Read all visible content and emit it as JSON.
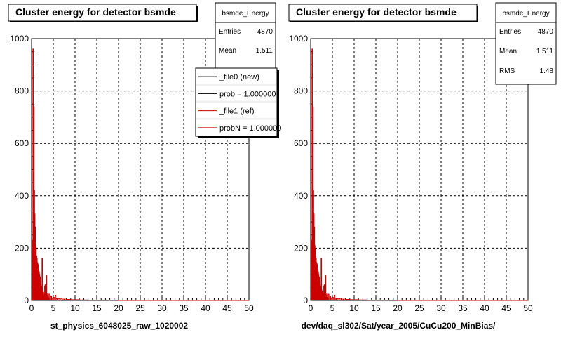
{
  "chart_data": [
    {
      "type": "histogram",
      "title": "Cluster energy for detector bsmde",
      "xlabel": "st_physics_6048025_raw_1020002",
      "ylabel": "",
      "xlim": [
        0,
        50
      ],
      "ylim": [
        0,
        1000
      ],
      "x_ticks": [
        "0",
        "5",
        "10",
        "15",
        "20",
        "25",
        "30",
        "35",
        "40",
        "45",
        "50"
      ],
      "y_ticks": [
        "0",
        "200",
        "400",
        "600",
        "800",
        "1000"
      ],
      "grid": true,
      "stats": {
        "name": "bsmde_Energy",
        "rows": [
          {
            "label": "Entries",
            "value": "4870"
          },
          {
            "label": "Mean",
            "value": "1.511"
          }
        ]
      },
      "legend": {
        "placement": "top-right",
        "entries": [
          {
            "label": "_file0 (new)",
            "color": "#000000"
          },
          {
            "label": "prob = 1.000000",
            "color": "#000000"
          },
          {
            "label": "_file1 (ref)",
            "color": "#cc0000"
          },
          {
            "label": "probN = 1.000000",
            "color": "#cc0000"
          }
        ]
      },
      "series": [
        {
          "color": "#cc0000",
          "x": [
            0.2,
            0.3,
            0.4,
            0.5,
            0.6,
            0.7,
            0.8,
            0.9,
            1.0,
            1.1,
            1.2,
            1.3,
            1.4,
            1.5,
            1.6,
            1.7,
            1.8,
            1.9,
            2.0,
            2.1,
            2.2,
            2.3,
            2.4,
            2.5,
            2.6,
            2.7,
            2.8,
            2.9,
            3.0,
            3.1,
            3.2,
            3.3,
            3.4,
            3.5,
            3.6,
            3.7,
            3.8,
            3.9,
            4.0,
            4.2,
            4.4,
            4.6,
            4.8,
            5.0,
            5.2,
            5.4,
            5.6,
            5.8,
            6.0,
            6.3,
            6.6,
            7.0,
            7.5,
            8.0,
            8.5,
            9.0,
            9.5,
            10.0,
            11,
            12,
            13,
            14,
            15,
            16,
            17,
            18,
            19,
            20
          ],
          "y": [
            230,
            960,
            540,
            740,
            420,
            330,
            280,
            210,
            200,
            170,
            160,
            145,
            140,
            135,
            120,
            110,
            100,
            90,
            85,
            60,
            55,
            48,
            160,
            40,
            35,
            30,
            22,
            18,
            55,
            60,
            14,
            12,
            95,
            20,
            10,
            25,
            12,
            10,
            24,
            18,
            15,
            10,
            8,
            12,
            9,
            20,
            8,
            6,
            7,
            8,
            6,
            5,
            5,
            4,
            4,
            3,
            3,
            3,
            2,
            2,
            1,
            1,
            1,
            1,
            1,
            1,
            1,
            0
          ]
        }
      ]
    },
    {
      "type": "histogram",
      "title": "Cluster energy for detector bsmde",
      "xlabel": "dev/daq_sl302/Sat/year_2005/CuCu200_MinBias/",
      "ylabel": "",
      "xlim": [
        0,
        50
      ],
      "ylim": [
        0,
        1000
      ],
      "x_ticks": [
        "0",
        "5",
        "10",
        "15",
        "20",
        "25",
        "30",
        "35",
        "40",
        "45",
        "50"
      ],
      "y_ticks": [
        "0",
        "200",
        "400",
        "600",
        "800",
        "1000"
      ],
      "grid": true,
      "stats": {
        "name": "bsmde_Energy",
        "rows": [
          {
            "label": "Entries",
            "value": "4870"
          },
          {
            "label": "Mean",
            "value": "1.511"
          },
          {
            "label": "RMS",
            "value": "1.48"
          }
        ]
      },
      "series": [
        {
          "color": "#cc0000",
          "x": [
            0.2,
            0.3,
            0.4,
            0.5,
            0.6,
            0.7,
            0.8,
            0.9,
            1.0,
            1.1,
            1.2,
            1.3,
            1.4,
            1.5,
            1.6,
            1.7,
            1.8,
            1.9,
            2.0,
            2.1,
            2.2,
            2.3,
            2.4,
            2.5,
            2.6,
            2.7,
            2.8,
            2.9,
            3.0,
            3.1,
            3.2,
            3.3,
            3.4,
            3.5,
            3.6,
            3.7,
            3.8,
            3.9,
            4.0,
            4.2,
            4.4,
            4.6,
            4.8,
            5.0,
            5.2,
            5.4,
            5.6,
            5.8,
            6.0,
            6.3,
            6.6,
            7.0,
            7.5,
            8.0,
            8.5,
            9.0,
            9.5,
            10.0,
            11,
            12,
            13,
            14,
            15,
            16,
            17,
            18,
            19,
            20
          ],
          "y": [
            230,
            960,
            540,
            740,
            420,
            330,
            280,
            210,
            200,
            170,
            160,
            145,
            140,
            135,
            120,
            110,
            100,
            90,
            85,
            60,
            55,
            48,
            160,
            40,
            35,
            30,
            22,
            18,
            55,
            60,
            14,
            12,
            95,
            20,
            10,
            25,
            12,
            10,
            24,
            18,
            15,
            10,
            8,
            12,
            9,
            20,
            8,
            6,
            7,
            8,
            6,
            5,
            5,
            4,
            4,
            3,
            3,
            3,
            2,
            2,
            1,
            1,
            1,
            1,
            1,
            1,
            1,
            0
          ]
        }
      ]
    }
  ]
}
